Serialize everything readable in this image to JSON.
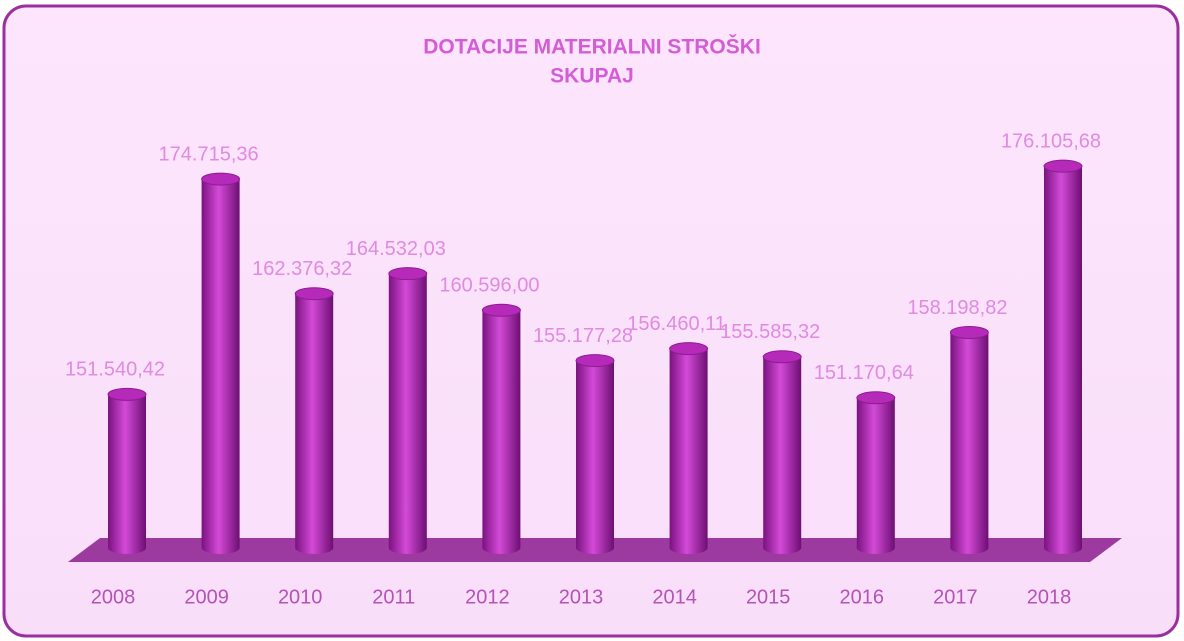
{
  "chart_data": {
    "type": "bar",
    "title": [
      "DOTACIJE MATERIALNI STROŠKI",
      "SKUPAJ"
    ],
    "categories": [
      "2008",
      "2009",
      "2010",
      "2011",
      "2012",
      "2013",
      "2014",
      "2015",
      "2016",
      "2017",
      "2018"
    ],
    "values": [
      151540.42,
      174715.36,
      162376.32,
      164532.03,
      160596.0,
      155177.28,
      156460.11,
      155585.32,
      151170.64,
      158198.82,
      176105.68
    ],
    "value_labels": [
      "151.540,42",
      "174.715,36",
      "162.376,32",
      "164.532,03",
      "160.596,00",
      "155.177,28",
      "156.460,11",
      "155.585,32",
      "151.170,64",
      "158.198,82",
      "176.105,68"
    ],
    "color": "#b52ab8",
    "ylim": [
      135000,
      180000
    ]
  }
}
